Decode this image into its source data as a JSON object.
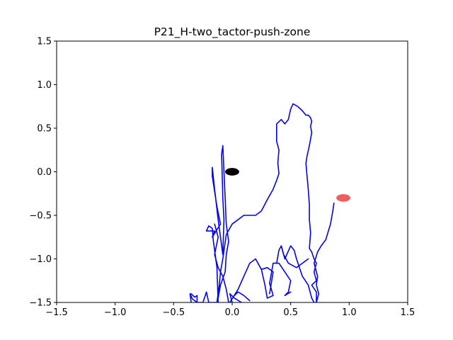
{
  "chart_data": {
    "type": "line",
    "title": "P21_H-two_tactor-push-zone",
    "xlabel": "",
    "ylabel": "",
    "xlim": [
      -1.5,
      1.5
    ],
    "ylim": [
      -1.5,
      1.5
    ],
    "grid": false,
    "x_ticks": [
      -1.5,
      -1.0,
      -0.5,
      0.0,
      0.5,
      1.0,
      1.5
    ],
    "y_ticks": [
      -1.5,
      -1.0,
      -0.5,
      0.0,
      0.5,
      1.0,
      1.5
    ],
    "x_tick_labels": [
      "−1.5",
      "−1.0",
      "−0.5",
      "0.0",
      "0.5",
      "1.0",
      "1.5"
    ],
    "y_tick_labels": [
      "−1.5",
      "−1.0",
      "−0.5",
      "0.0",
      "0.5",
      "1.0",
      "1.5"
    ],
    "line_color": "#0000ff",
    "trajectory": [
      [
        -0.35,
        -1.5
      ],
      [
        -0.36,
        -1.4
      ],
      [
        -0.34,
        -1.46
      ],
      [
        -0.3,
        -1.5
      ],
      [
        -0.25,
        -1.5
      ],
      [
        -0.23,
        -1.42
      ],
      [
        -0.22,
        -1.38
      ],
      [
        -0.2,
        -1.5
      ],
      [
        -0.12,
        -1.5
      ],
      [
        -0.13,
        -1.1
      ],
      [
        -0.16,
        -0.8
      ],
      [
        -0.17,
        -0.65
      ],
      [
        -0.2,
        -0.62
      ],
      [
        -0.22,
        -0.68
      ],
      [
        -0.15,
        -0.68
      ],
      [
        -0.17,
        -0.75
      ],
      [
        -0.1,
        -0.6
      ],
      [
        -0.13,
        -0.4
      ],
      [
        -0.17,
        -0.05
      ],
      [
        -0.17,
        0.05
      ],
      [
        -0.15,
        -0.2
      ],
      [
        -0.12,
        -0.55
      ],
      [
        -0.1,
        -0.75
      ],
      [
        -0.08,
        -0.95
      ],
      [
        -0.07,
        -0.55
      ],
      [
        -0.08,
        -0.3
      ],
      [
        -0.09,
        0.2
      ],
      [
        -0.08,
        0.3
      ],
      [
        -0.06,
        -0.3
      ],
      [
        -0.05,
        -0.6
      ],
      [
        -0.03,
        -0.8
      ],
      [
        -0.05,
        -0.95
      ],
      [
        -0.06,
        -1.15
      ],
      [
        -0.1,
        -1.3
      ],
      [
        -0.12,
        -1.45
      ],
      [
        -0.13,
        -1.5
      ],
      [
        -0.11,
        -1.3
      ],
      [
        -0.1,
        -1.15
      ],
      [
        -0.08,
        -1.0
      ],
      [
        -0.05,
        -0.72
      ],
      [
        0.0,
        -0.6
      ],
      [
        0.1,
        -0.5
      ],
      [
        0.2,
        -0.5
      ],
      [
        0.25,
        -0.45
      ],
      [
        0.3,
        -0.32
      ],
      [
        0.35,
        -0.2
      ],
      [
        0.38,
        -0.1
      ],
      [
        0.4,
        -0.02
      ],
      [
        0.39,
        0.1
      ],
      [
        0.4,
        0.25
      ],
      [
        0.38,
        0.35
      ],
      [
        0.38,
        0.55
      ],
      [
        0.42,
        0.6
      ],
      [
        0.45,
        0.55
      ],
      [
        0.48,
        0.6
      ],
      [
        0.5,
        0.72
      ],
      [
        0.52,
        0.78
      ],
      [
        0.56,
        0.75
      ],
      [
        0.6,
        0.7
      ],
      [
        0.63,
        0.65
      ],
      [
        0.65,
        0.65
      ],
      [
        0.67,
        0.62
      ],
      [
        0.68,
        0.58
      ],
      [
        0.67,
        0.52
      ],
      [
        0.68,
        0.45
      ],
      [
        0.66,
        0.3
      ],
      [
        0.64,
        0.18
      ],
      [
        0.63,
        0.1
      ],
      [
        0.64,
        -0.05
      ],
      [
        0.65,
        -0.2
      ],
      [
        0.66,
        -0.38
      ],
      [
        0.66,
        -0.55
      ],
      [
        0.67,
        -0.7
      ],
      [
        0.66,
        -0.88
      ],
      [
        0.68,
        -0.92
      ],
      [
        0.7,
        -1.0
      ],
      [
        0.72,
        -1.05
      ],
      [
        0.7,
        -1.15
      ],
      [
        0.72,
        -1.25
      ],
      [
        0.68,
        -1.3
      ],
      [
        0.72,
        -1.38
      ],
      [
        0.72,
        -1.5
      ],
      [
        0.74,
        -1.4
      ],
      [
        0.72,
        -1.3
      ],
      [
        0.73,
        -1.2
      ],
      [
        0.7,
        -1.05
      ],
      [
        0.73,
        -0.92
      ],
      [
        0.76,
        -0.85
      ],
      [
        0.8,
        -0.78
      ],
      [
        0.84,
        -0.6
      ],
      [
        0.86,
        -0.45
      ],
      [
        0.87,
        -0.36
      ]
    ],
    "path_segments": [
      [
        [
          -0.15,
          -0.6
        ],
        [
          -0.12,
          -0.75
        ],
        [
          -0.15,
          -0.95
        ],
        [
          -0.12,
          -1.1
        ],
        [
          -0.08,
          -1.2
        ],
        [
          -0.05,
          -1.35
        ],
        [
          -0.03,
          -1.5
        ]
      ],
      [
        [
          -0.02,
          -1.5
        ],
        [
          0.05,
          -1.35
        ],
        [
          0.1,
          -1.2
        ],
        [
          0.15,
          -1.05
        ],
        [
          0.2,
          -1.0
        ],
        [
          0.25,
          -1.12
        ],
        [
          0.28,
          -1.3
        ],
        [
          0.3,
          -1.45
        ],
        [
          0.35,
          -1.42
        ],
        [
          0.32,
          -1.28
        ]
      ],
      [
        [
          0.25,
          -1.12
        ],
        [
          0.3,
          -1.1
        ],
        [
          0.35,
          -1.15
        ],
        [
          0.32,
          -1.4
        ]
      ],
      [
        [
          0.32,
          -1.28
        ],
        [
          0.35,
          -1.05
        ],
        [
          0.4,
          -1.05
        ],
        [
          0.45,
          -1.15
        ],
        [
          0.5,
          -1.25
        ],
        [
          0.48,
          -1.38
        ],
        [
          0.45,
          -1.42
        ],
        [
          0.5,
          -1.38
        ]
      ],
      [
        [
          0.38,
          -1.05
        ],
        [
          0.4,
          -0.9
        ],
        [
          0.42,
          -0.85
        ],
        [
          0.45,
          -1.0
        ],
        [
          0.5,
          -0.85
        ],
        [
          0.53,
          -0.9
        ],
        [
          0.55,
          -1.0
        ],
        [
          0.6,
          -1.2
        ],
        [
          0.65,
          -1.3
        ],
        [
          0.68,
          -1.45
        ],
        [
          0.7,
          -1.5
        ]
      ],
      [
        [
          0.42,
          -0.85
        ],
        [
          0.44,
          -0.95
        ],
        [
          0.48,
          -1.05
        ],
        [
          0.55,
          -1.1
        ],
        [
          0.6,
          -1.05
        ],
        [
          0.65,
          -1.0
        ]
      ],
      [
        [
          0.0,
          -1.5
        ],
        [
          -0.02,
          -1.4
        ],
        [
          0.02,
          -1.45
        ],
        [
          0.08,
          -1.5
        ]
      ],
      [
        [
          -0.35,
          -1.4
        ],
        [
          -0.32,
          -1.44
        ],
        [
          -0.3,
          -1.42
        ],
        [
          -0.3,
          -1.5
        ]
      ],
      [
        [
          0.02,
          -1.42
        ],
        [
          0.05,
          -1.38
        ],
        [
          0.1,
          -1.42
        ],
        [
          0.15,
          -1.48
        ]
      ]
    ],
    "markers": [
      {
        "x": 0.0,
        "y": 0.0,
        "color": "#000000",
        "rx": 0.06,
        "ry": 0.06
      },
      {
        "x": 0.95,
        "y": -0.3,
        "color": "#f04040",
        "rx": 0.06,
        "ry": 0.06
      }
    ]
  }
}
